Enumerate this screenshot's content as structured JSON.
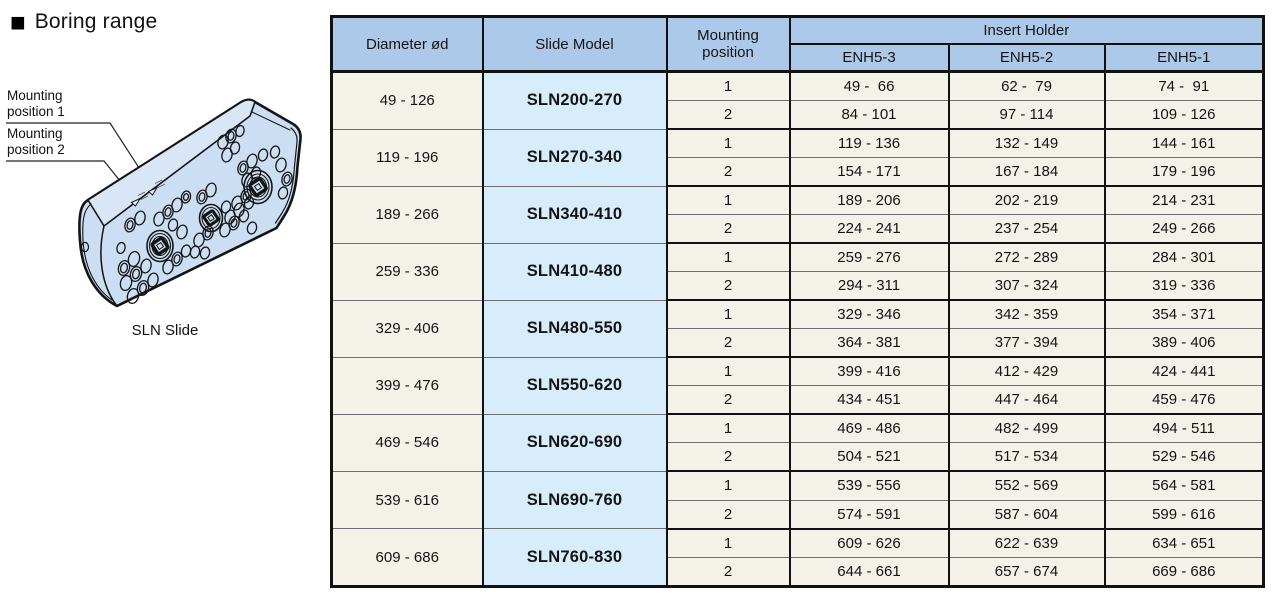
{
  "header": {
    "marker": "■",
    "title": "Boring range"
  },
  "illustration": {
    "caption": "SLN Slide",
    "labels": [
      {
        "line1": "Mounting",
        "line2": "position 1"
      },
      {
        "line1": "Mounting",
        "line2": "position 2"
      }
    ]
  },
  "table": {
    "header": {
      "diameter": "Diameter ød",
      "slide_model": "Slide Model",
      "mounting_position": "Mounting position",
      "insert_holder": "Insert Holder",
      "insert_models": [
        "ENH5-3",
        "ENH5-2",
        "ENH5-1"
      ]
    },
    "rows": [
      {
        "diameter": "49 - 126",
        "model": "SLN200-270",
        "positions": [
          {
            "position": "1",
            "values": [
              "49 -  66",
              "62 -  79",
              "74 -  91"
            ]
          },
          {
            "position": "2",
            "values": [
              "84 - 101",
              "97 - 114",
              "109 - 126"
            ]
          }
        ]
      },
      {
        "diameter": "119 - 196",
        "model": "SLN270-340",
        "positions": [
          {
            "position": "1",
            "values": [
              "119 - 136",
              "132 - 149",
              "144 - 161"
            ]
          },
          {
            "position": "2",
            "values": [
              "154 - 171",
              "167 - 184",
              "179 - 196"
            ]
          }
        ]
      },
      {
        "diameter": "189 - 266",
        "model": "SLN340-410",
        "positions": [
          {
            "position": "1",
            "values": [
              "189 - 206",
              "202 - 219",
              "214 - 231"
            ]
          },
          {
            "position": "2",
            "values": [
              "224 - 241",
              "237 - 254",
              "249 - 266"
            ]
          }
        ]
      },
      {
        "diameter": "259 - 336",
        "model": "SLN410-480",
        "positions": [
          {
            "position": "1",
            "values": [
              "259 - 276",
              "272 - 289",
              "284 - 301"
            ]
          },
          {
            "position": "2",
            "values": [
              "294 - 311",
              "307 - 324",
              "319 - 336"
            ]
          }
        ]
      },
      {
        "diameter": "329 - 406",
        "model": "SLN480-550",
        "positions": [
          {
            "position": "1",
            "values": [
              "329 - 346",
              "342 - 359",
              "354 - 371"
            ]
          },
          {
            "position": "2",
            "values": [
              "364 - 381",
              "377 - 394",
              "389 - 406"
            ]
          }
        ]
      },
      {
        "diameter": "399 - 476",
        "model": "SLN550-620",
        "positions": [
          {
            "position": "1",
            "values": [
              "399 - 416",
              "412 - 429",
              "424 - 441"
            ]
          },
          {
            "position": "2",
            "values": [
              "434 - 451",
              "447 - 464",
              "459 - 476"
            ]
          }
        ]
      },
      {
        "diameter": "469 - 546",
        "model": "SLN620-690",
        "positions": [
          {
            "position": "1",
            "values": [
              "469 - 486",
              "482 - 499",
              "494 - 511"
            ]
          },
          {
            "position": "2",
            "values": [
              "504 - 521",
              "517 - 534",
              "529 - 546"
            ]
          }
        ]
      },
      {
        "diameter": "539 - 616",
        "model": "SLN690-760",
        "positions": [
          {
            "position": "1",
            "values": [
              "539 - 556",
              "552 - 569",
              "564 - 581"
            ]
          },
          {
            "position": "2",
            "values": [
              "574 - 591",
              "587 - 604",
              "599 - 616"
            ]
          }
        ]
      },
      {
        "diameter": "609 - 686",
        "model": "SLN760-830",
        "positions": [
          {
            "position": "1",
            "values": [
              "609 - 626",
              "622 - 639",
              "634 - 651"
            ]
          },
          {
            "position": "2",
            "values": [
              "644 - 661",
              "657 - 674",
              "669 - 686"
            ]
          }
        ]
      }
    ]
  },
  "colors": {
    "header_bg": "#adc9e9",
    "model_bg": "#d7edfb",
    "cell_bg": "#f4f1e8",
    "border": "#111111",
    "block_fill": "#cbdef4",
    "block_top_fill": "#d8e6f7"
  }
}
